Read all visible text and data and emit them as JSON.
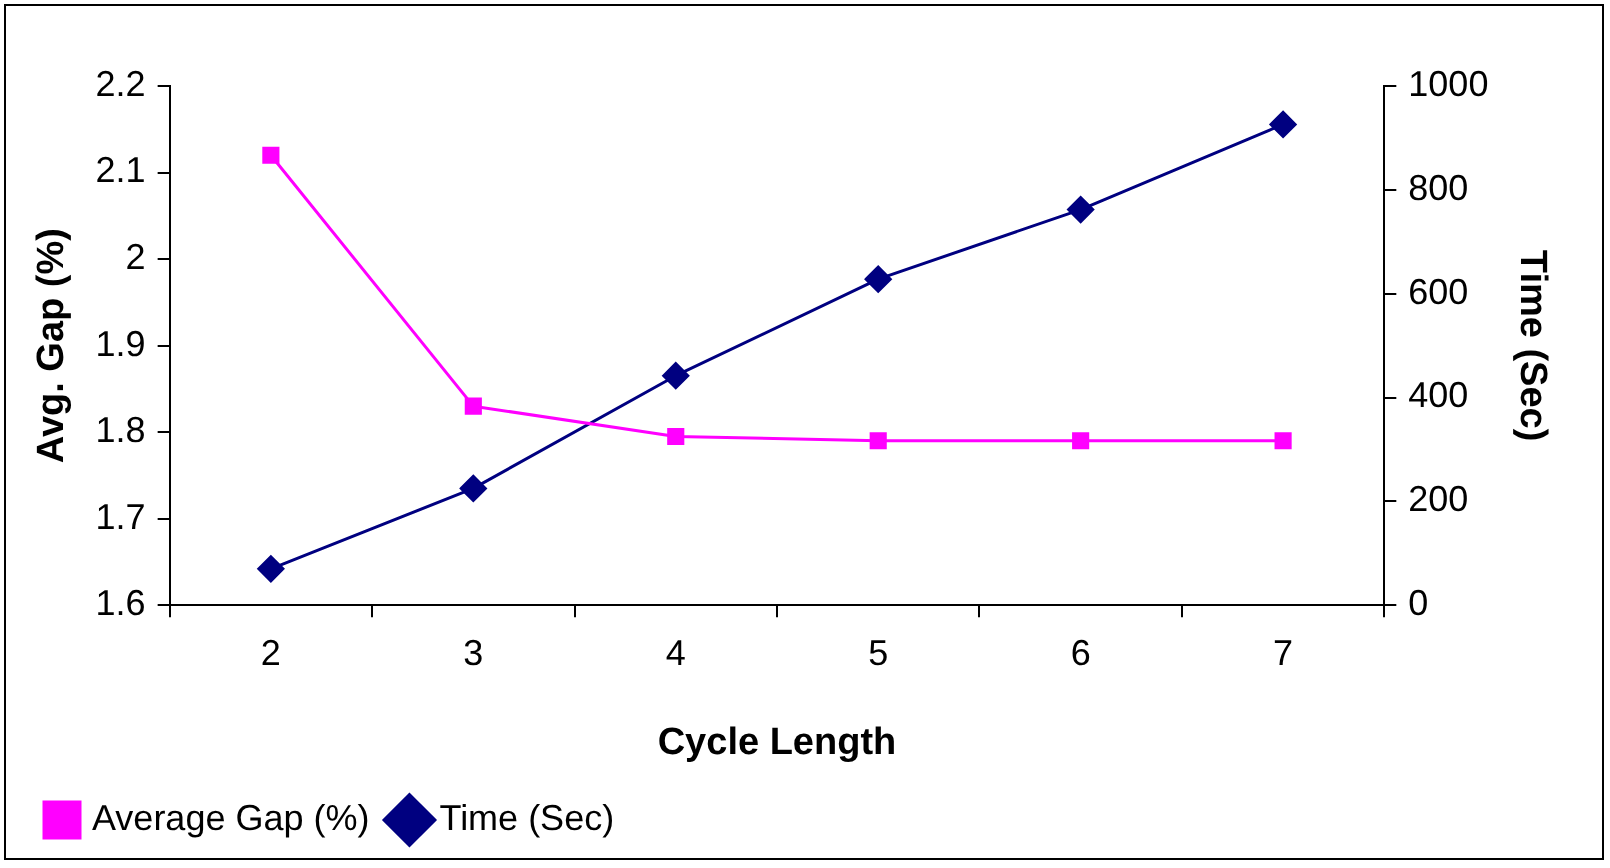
{
  "chart_data": {
    "type": "line",
    "xlabel": "Cycle Length",
    "ylabel": "Avg. Gap (%)",
    "y2label": "Time (Sec)",
    "categories": [
      "2",
      "3",
      "4",
      "5",
      "6",
      "7"
    ],
    "series": [
      {
        "name": "Average Gap (%)",
        "color": "#ff00ff",
        "values": [
          2.12,
          1.83,
          1.795,
          1.79,
          1.79,
          1.79
        ],
        "marker": "square"
      },
      {
        "name": "Time (Sec)",
        "color": "#000080",
        "values": [
          70,
          225,
          442,
          628,
          762,
          926
        ],
        "axis": "y2",
        "marker": "diamond"
      }
    ],
    "ylim": [
      1.6,
      2.2
    ],
    "yticks": [
      1.6,
      1.7,
      1.8,
      1.9,
      2,
      2.1,
      2.2
    ],
    "y2lim": [
      0,
      1000
    ],
    "y2ticks": [
      0,
      200,
      400,
      600,
      800,
      1000
    ],
    "grid": false,
    "legend": "bottom",
    "line_style": "solid"
  }
}
